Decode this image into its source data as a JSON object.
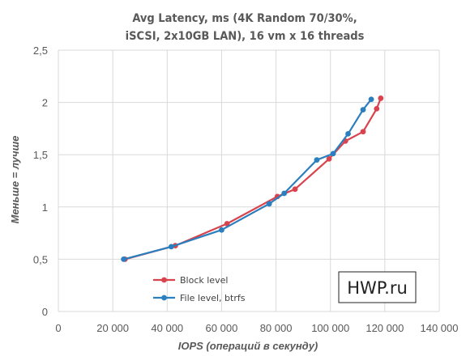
{
  "chart_data": {
    "type": "line",
    "title_lines": [
      "Avg Latency, ms (4K Random 70/30%,",
      "iSCSI, 2x10GB LAN), 16 vm x 16 threads"
    ],
    "xlabel": "IOPS (операций в секунду)",
    "ylabel": "Меньше = лучше",
    "xlim": [
      0,
      140000
    ],
    "ylim": [
      0,
      2.5
    ],
    "x_ticks": [
      0,
      20000,
      40000,
      60000,
      80000,
      100000,
      120000,
      140000
    ],
    "x_tick_labels": [
      "0",
      "20 000",
      "40 000",
      "60 000",
      "80 000",
      "100 000",
      "120 000",
      "140 000"
    ],
    "y_ticks": [
      0,
      0.5,
      1,
      1.5,
      2,
      2.5
    ],
    "y_tick_labels": [
      "0",
      "0,5",
      "1",
      "1,5",
      "2",
      "2,5"
    ],
    "grid": true,
    "legend_position": "bottom-left",
    "series": [
      {
        "name": "Block level",
        "color": "#d9434d",
        "x": [
          24500,
          43000,
          62000,
          80500,
          87000,
          99500,
          105500,
          112000,
          117000,
          118500
        ],
        "y": [
          0.5,
          0.63,
          0.84,
          1.1,
          1.17,
          1.46,
          1.63,
          1.72,
          1.94,
          2.04
        ]
      },
      {
        "name": "File level, btrfs",
        "color": "#2b7fbf",
        "x": [
          24000,
          41500,
          60000,
          77500,
          83000,
          95000,
          101000,
          106500,
          112000,
          115000
        ],
        "y": [
          0.5,
          0.62,
          0.78,
          1.03,
          1.13,
          1.45,
          1.51,
          1.7,
          1.93,
          2.03
        ]
      }
    ]
  },
  "watermark": "HWP.ru"
}
